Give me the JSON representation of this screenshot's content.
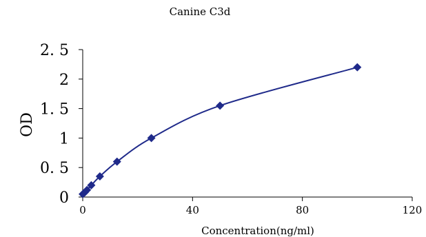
{
  "chart_data": {
    "type": "scatter",
    "title": "Canine C3d",
    "xlabel": "Concentration(ng/ml)",
    "ylabel": "OD",
    "xlim": [
      0,
      120
    ],
    "ylim": [
      0,
      2.5
    ],
    "x_ticks": [
      0,
      40,
      80,
      120
    ],
    "x_tick_labels": [
      "0",
      "40",
      "80",
      "120"
    ],
    "y_ticks": [
      0,
      0.5,
      1,
      1.5,
      2,
      2.5
    ],
    "y_tick_labels": [
      "0",
      "0. 5",
      "1",
      "1. 5",
      "2",
      "2. 5"
    ],
    "grid": false,
    "legend": "none",
    "color": "#1f2a8a",
    "marker": "diamond",
    "trendline": "smooth",
    "series": [
      {
        "x": [
          0,
          0.78,
          1.56,
          3.12,
          6.25,
          12.5,
          25,
          50,
          100
        ],
        "y": [
          0.05,
          0.08,
          0.12,
          0.2,
          0.35,
          0.6,
          1.0,
          1.55,
          2.2
        ]
      }
    ]
  }
}
